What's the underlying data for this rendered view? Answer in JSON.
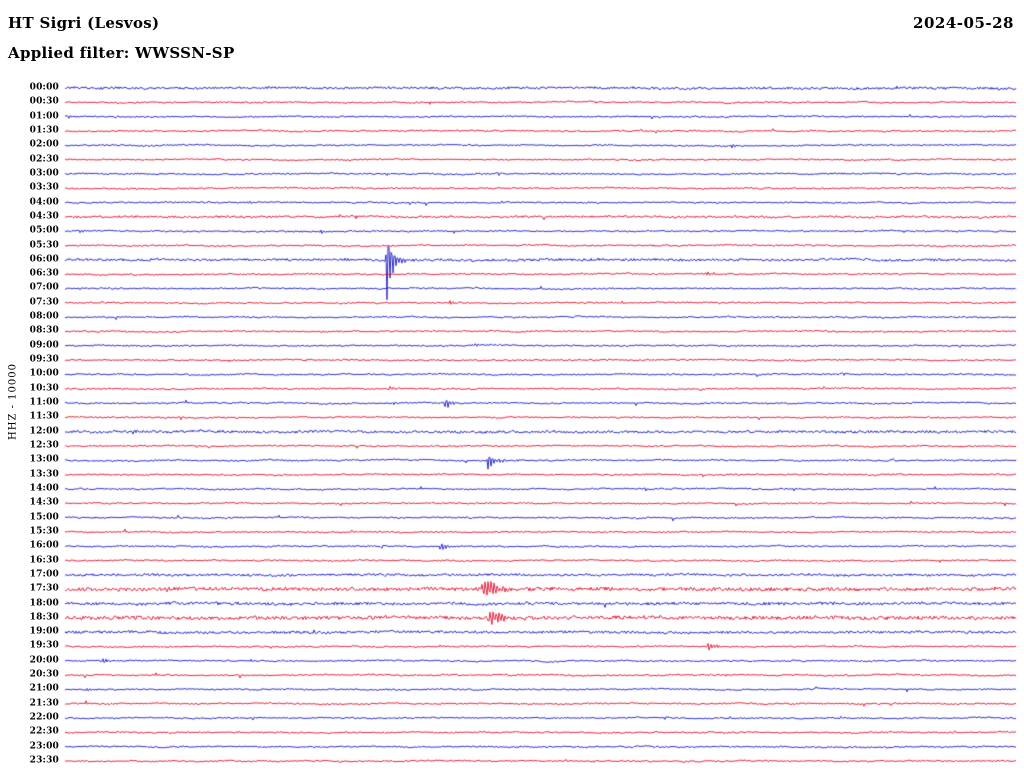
{
  "chart_data": {
    "type": "line",
    "subtype": "helicorder-seismogram",
    "title": "HT Sigri (Lesvos)",
    "date": "2024-05-28",
    "filter_label": "Applied filter: WWSSN-SP",
    "scale_label": "HHZ - 10000",
    "row_interval_minutes": 30,
    "legend": "none",
    "grid": false,
    "rows": [
      "00:00",
      "00:30",
      "01:00",
      "01:30",
      "02:00",
      "02:30",
      "03:00",
      "03:30",
      "04:00",
      "04:30",
      "05:00",
      "05:30",
      "06:00",
      "06:30",
      "07:00",
      "07:30",
      "08:00",
      "08:30",
      "09:00",
      "09:30",
      "10:00",
      "10:30",
      "11:00",
      "11:30",
      "12:00",
      "12:30",
      "13:00",
      "13:30",
      "14:00",
      "14:30",
      "15:00",
      "15:30",
      "16:00",
      "16:30",
      "17:00",
      "17:30",
      "18:00",
      "18:30",
      "19:00",
      "19:30",
      "20:00",
      "20:30",
      "21:00",
      "21:30",
      "22:00",
      "22:30",
      "23:00",
      "23:30"
    ],
    "colors": {
      "even_rows": "#1A1AC4",
      "odd_rows": "#E0102F",
      "labels": "#000000",
      "background": "#ffffff"
    },
    "row_noise": {
      "default": 0.7,
      "overrides": {
        "00:00": 1.1,
        "04:30": 1.0,
        "06:00": 1.2,
        "12:00": 1.2,
        "17:00": 1.1,
        "17:30": 1.7,
        "18:00": 1.4,
        "18:30": 1.7,
        "19:00": 1.2
      }
    },
    "events": [
      {
        "time": "02:00",
        "offset_frac": 0.7,
        "amplitude": 2.2,
        "duration_frac": 0.01
      },
      {
        "time": "03:30",
        "offset_frac": 0.3,
        "amplitude": 1.8,
        "duration_frac": 0.008
      },
      {
        "time": "04:00",
        "offset_frac": 0.19,
        "amplitude": 2.0,
        "duration_frac": 0.008
      },
      {
        "time": "05:00",
        "offset_frac": 0.014,
        "amplitude": 2.2,
        "duration_frac": 0.008
      },
      {
        "time": "05:00",
        "offset_frac": 0.268,
        "amplitude": 2.4,
        "duration_frac": 0.01
      },
      {
        "time": "06:00",
        "offset_frac": 0.337,
        "amplitude": 45.0,
        "duration_frac": 0.013
      },
      {
        "time": "06:30",
        "offset_frac": 0.674,
        "amplitude": 2.8,
        "duration_frac": 0.014
      },
      {
        "time": "07:30",
        "offset_frac": 0.403,
        "amplitude": 3.2,
        "duration_frac": 0.012
      },
      {
        "time": "08:30",
        "offset_frac": 0.268,
        "amplitude": 2.0,
        "duration_frac": 0.008
      },
      {
        "time": "09:00",
        "offset_frac": 0.429,
        "amplitude": 2.0,
        "duration_frac": 0.008
      },
      {
        "time": "09:00",
        "offset_frac": 0.545,
        "amplitude": 2.0,
        "duration_frac": 0.008
      },
      {
        "time": "10:00",
        "offset_frac": 0.816,
        "amplitude": 1.8,
        "duration_frac": 0.008
      },
      {
        "time": "10:30",
        "offset_frac": 0.339,
        "amplitude": 3.5,
        "duration_frac": 0.011
      },
      {
        "time": "11:00",
        "offset_frac": 0.398,
        "amplitude": 6.5,
        "duration_frac": 0.015
      },
      {
        "time": "12:00",
        "offset_frac": 0.068,
        "amplitude": 2.5,
        "duration_frac": 0.014
      },
      {
        "time": "12:00",
        "offset_frac": 0.753,
        "amplitude": 1.8,
        "duration_frac": 0.008
      },
      {
        "time": "13:00",
        "offset_frac": 0.443,
        "amplitude": 10.0,
        "duration_frac": 0.016
      },
      {
        "time": "14:30",
        "offset_frac": 0.207,
        "amplitude": 2.2,
        "duration_frac": 0.008
      },
      {
        "time": "16:00",
        "offset_frac": 0.393,
        "amplitude": 5.0,
        "duration_frac": 0.013
      },
      {
        "time": "17:30",
        "offset_frac": 0.437,
        "amplitude": 13.0,
        "duration_frac": 0.03
      },
      {
        "time": "18:30",
        "offset_frac": 0.444,
        "amplitude": 9.5,
        "duration_frac": 0.034
      },
      {
        "time": "19:30",
        "offset_frac": 0.675,
        "amplitude": 5.0,
        "duration_frac": 0.014
      },
      {
        "time": "20:00",
        "offset_frac": 0.037,
        "amplitude": 2.8,
        "duration_frac": 0.02
      },
      {
        "time": "21:00",
        "offset_frac": 0.021,
        "amplitude": 2.2,
        "duration_frac": 0.01
      }
    ]
  }
}
